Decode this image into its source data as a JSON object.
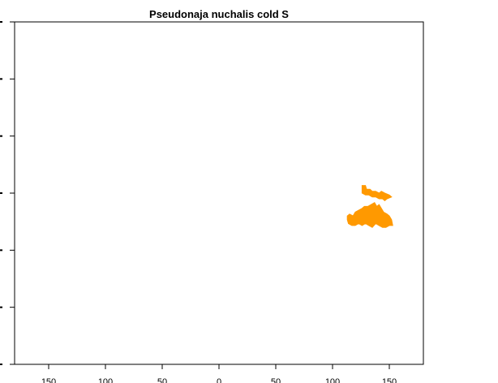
{
  "title": "Pseudonaja nuchalis cold S",
  "map": {
    "type": "range-map",
    "species": "Pseudonaja nuchalis",
    "scenario": "cold S",
    "xlim": [
      -180,
      180
    ],
    "ylim": [
      -90,
      90
    ],
    "x_ticks": [
      -150,
      -100,
      -50,
      0,
      50,
      100,
      150
    ],
    "x_tick_labels": [
      "150",
      "100",
      "50",
      "0",
      "50",
      "100",
      "150"
    ],
    "y_ticks": [
      -90,
      -60,
      -30,
      0,
      30,
      60,
      90
    ],
    "range_color": "#ff9900",
    "range_regions": [
      {
        "name": "northern-range-fragment",
        "polygon": [
          [
            126,
            4
          ],
          [
            129,
            4
          ],
          [
            130,
            2
          ],
          [
            133,
            2
          ],
          [
            135,
            1
          ],
          [
            138,
            1
          ],
          [
            141,
            0
          ],
          [
            143,
            1
          ],
          [
            146,
            0
          ],
          [
            150,
            -1
          ],
          [
            152,
            -2
          ],
          [
            148,
            -3
          ],
          [
            146,
            -4
          ],
          [
            144,
            -3
          ],
          [
            141,
            -3
          ],
          [
            138,
            -2
          ],
          [
            135,
            -2
          ],
          [
            132,
            -1
          ],
          [
            129,
            -1
          ],
          [
            126,
            0
          ]
        ]
      },
      {
        "name": "main-range-body",
        "polygon": [
          [
            113,
            -12
          ],
          [
            115,
            -11
          ],
          [
            118,
            -12
          ],
          [
            120,
            -10
          ],
          [
            123,
            -9
          ],
          [
            126,
            -8
          ],
          [
            128,
            -7
          ],
          [
            131,
            -7
          ],
          [
            134,
            -6
          ],
          [
            137,
            -5
          ],
          [
            139,
            -7
          ],
          [
            141,
            -6
          ],
          [
            143,
            -8
          ],
          [
            145,
            -10
          ],
          [
            148,
            -11
          ],
          [
            150,
            -12
          ],
          [
            152,
            -14
          ],
          [
            153,
            -17
          ],
          [
            150,
            -17
          ],
          [
            147,
            -18
          ],
          [
            144,
            -18
          ],
          [
            141,
            -17
          ],
          [
            138,
            -16
          ],
          [
            135,
            -18
          ],
          [
            132,
            -17
          ],
          [
            129,
            -16
          ],
          [
            126,
            -17
          ],
          [
            123,
            -16
          ],
          [
            120,
            -17
          ],
          [
            117,
            -17
          ],
          [
            114,
            -16
          ],
          [
            113,
            -14
          ]
        ]
      }
    ]
  }
}
